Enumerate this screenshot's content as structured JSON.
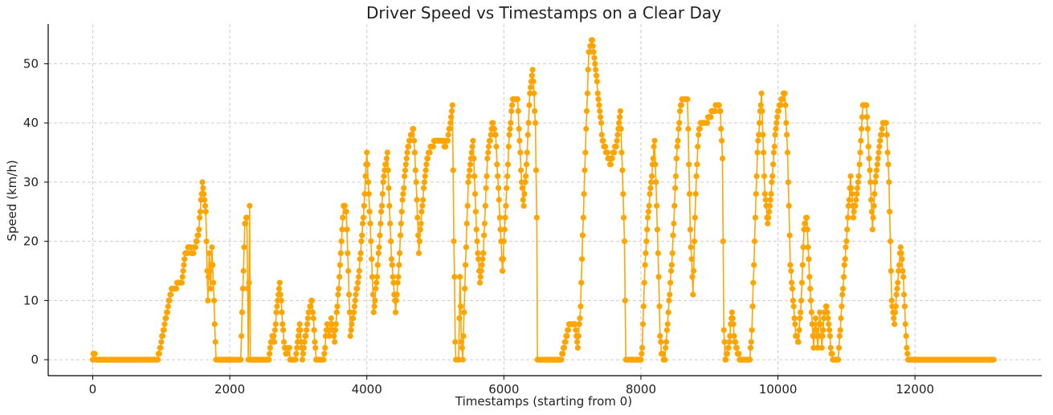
{
  "chart_data": {
    "type": "line",
    "title": "Driver Speed vs Timestamps on a Clear Day",
    "xlabel": "Timestamps (starting from 0)",
    "ylabel": "Speed (km/h)",
    "xlim": [
      -650,
      13850
    ],
    "ylim": [
      -2.7,
      56.7
    ],
    "x_ticks": [
      0,
      2000,
      4000,
      6000,
      8000,
      10000,
      12000
    ],
    "x_tick_labels": [
      "0",
      "2000",
      "4000",
      "6000",
      "8000",
      "10000",
      "12000"
    ],
    "y_ticks": [
      0,
      10,
      20,
      30,
      40,
      50
    ],
    "y_tick_labels": [
      "0",
      "10",
      "20",
      "30",
      "40",
      "50"
    ],
    "grid": true,
    "color": "#FFA500",
    "marker": "circle",
    "x_step": 10,
    "series": [
      {
        "keypoints": [
          [
            0,
            0
          ],
          [
            20,
            1
          ],
          [
            40,
            0
          ],
          [
            950,
            0
          ],
          [
            1150,
            12
          ],
          [
            1300,
            13
          ],
          [
            1350,
            18
          ],
          [
            1420,
            19
          ],
          [
            1450,
            18
          ],
          [
            1500,
            19
          ],
          [
            1550,
            22
          ],
          [
            1600,
            30
          ],
          [
            1650,
            25
          ],
          [
            1680,
            10
          ],
          [
            1700,
            18
          ],
          [
            1720,
            12
          ],
          [
            1740,
            19
          ],
          [
            1760,
            13
          ],
          [
            1780,
            6
          ],
          [
            1800,
            0
          ],
          [
            2160,
            0
          ],
          [
            2220,
            23
          ],
          [
            2250,
            24
          ],
          [
            2270,
            0
          ],
          [
            2290,
            26
          ],
          [
            2300,
            0
          ],
          [
            2570,
            0
          ],
          [
            2600,
            3
          ],
          [
            2630,
            4
          ],
          [
            2650,
            3
          ],
          [
            2680,
            8
          ],
          [
            2730,
            13
          ],
          [
            2760,
            8
          ],
          [
            2790,
            3
          ],
          [
            2820,
            1
          ],
          [
            2870,
            2
          ],
          [
            2880,
            0
          ],
          [
            2960,
            0
          ],
          [
            3020,
            6
          ],
          [
            3060,
            0
          ],
          [
            3140,
            7
          ],
          [
            3200,
            10
          ],
          [
            3260,
            0
          ],
          [
            3370,
            0
          ],
          [
            3420,
            6
          ],
          [
            3450,
            4
          ],
          [
            3480,
            7
          ],
          [
            3530,
            3
          ],
          [
            3600,
            14
          ],
          [
            3660,
            26
          ],
          [
            3700,
            25
          ],
          [
            3760,
            4
          ],
          [
            3820,
            9
          ],
          [
            3880,
            14
          ],
          [
            3950,
            24
          ],
          [
            4000,
            35
          ],
          [
            4060,
            20
          ],
          [
            4100,
            8
          ],
          [
            4150,
            14
          ],
          [
            4240,
            30
          ],
          [
            4300,
            35
          ],
          [
            4360,
            17
          ],
          [
            4420,
            8
          ],
          [
            4460,
            14
          ],
          [
            4520,
            27
          ],
          [
            4580,
            34
          ],
          [
            4620,
            37
          ],
          [
            4680,
            39
          ],
          [
            4720,
            30
          ],
          [
            4760,
            18
          ],
          [
            4800,
            25
          ],
          [
            4860,
            32
          ],
          [
            4900,
            35
          ],
          [
            4960,
            36
          ],
          [
            5000,
            37
          ],
          [
            5100,
            37
          ],
          [
            5140,
            36
          ],
          [
            5180,
            37
          ],
          [
            5220,
            40
          ],
          [
            5250,
            43
          ],
          [
            5270,
            20
          ],
          [
            5280,
            14
          ],
          [
            5290,
            3
          ],
          [
            5300,
            0
          ],
          [
            5340,
            0
          ],
          [
            5360,
            14
          ],
          [
            5380,
            3
          ],
          [
            5400,
            0
          ],
          [
            5430,
            12
          ],
          [
            5480,
            30
          ],
          [
            5550,
            37
          ],
          [
            5600,
            22
          ],
          [
            5650,
            13
          ],
          [
            5700,
            18
          ],
          [
            5760,
            34
          ],
          [
            5830,
            40
          ],
          [
            5880,
            38
          ],
          [
            5950,
            22
          ],
          [
            5980,
            15
          ],
          [
            6020,
            24
          ],
          [
            6080,
            38
          ],
          [
            6130,
            44
          ],
          [
            6200,
            44
          ],
          [
            6260,
            30
          ],
          [
            6290,
            26
          ],
          [
            6330,
            33
          ],
          [
            6380,
            45
          ],
          [
            6420,
            49
          ],
          [
            6460,
            40
          ],
          [
            6480,
            24
          ],
          [
            6490,
            0
          ],
          [
            6830,
            0
          ],
          [
            6880,
            2
          ],
          [
            6920,
            4
          ],
          [
            6960,
            6
          ],
          [
            7040,
            6
          ],
          [
            7080,
            2
          ],
          [
            7120,
            9
          ],
          [
            7180,
            32
          ],
          [
            7240,
            52
          ],
          [
            7290,
            54
          ],
          [
            7330,
            50
          ],
          [
            7400,
            42
          ],
          [
            7440,
            37
          ],
          [
            7500,
            35
          ],
          [
            7560,
            33
          ],
          [
            7600,
            35
          ],
          [
            7640,
            36
          ],
          [
            7700,
            42
          ],
          [
            7740,
            28
          ],
          [
            7760,
            20
          ],
          [
            7780,
            0
          ],
          [
            8000,
            0
          ],
          [
            8020,
            2
          ],
          [
            8060,
            16
          ],
          [
            8100,
            24
          ],
          [
            8150,
            30
          ],
          [
            8200,
            37
          ],
          [
            8230,
            26
          ],
          [
            8260,
            14
          ],
          [
            8280,
            4
          ],
          [
            8300,
            1
          ],
          [
            8350,
            0
          ],
          [
            8400,
            8
          ],
          [
            8460,
            18
          ],
          [
            8520,
            34
          ],
          [
            8580,
            43
          ],
          [
            8620,
            44
          ],
          [
            8680,
            44
          ],
          [
            8720,
            22
          ],
          [
            8760,
            11
          ],
          [
            8800,
            28
          ],
          [
            8840,
            38
          ],
          [
            8880,
            40
          ],
          [
            8950,
            40
          ],
          [
            9000,
            41
          ],
          [
            9060,
            42
          ],
          [
            9120,
            43
          ],
          [
            9160,
            42
          ],
          [
            9190,
            34
          ],
          [
            9210,
            5
          ],
          [
            9230,
            0
          ],
          [
            9260,
            1
          ],
          [
            9290,
            3
          ],
          [
            9330,
            8
          ],
          [
            9370,
            3
          ],
          [
            9410,
            1
          ],
          [
            9450,
            0
          ],
          [
            9590,
            0
          ],
          [
            9620,
            5
          ],
          [
            9660,
            20
          ],
          [
            9700,
            35
          ],
          [
            9760,
            45
          ],
          [
            9810,
            28
          ],
          [
            9850,
            23
          ],
          [
            9900,
            28
          ],
          [
            9960,
            38
          ],
          [
            10000,
            42
          ],
          [
            10060,
            44
          ],
          [
            10100,
            45
          ],
          [
            10140,
            35
          ],
          [
            10180,
            16
          ],
          [
            10220,
            10
          ],
          [
            10260,
            4
          ],
          [
            10300,
            3
          ],
          [
            10340,
            10
          ],
          [
            10380,
            22
          ],
          [
            10420,
            24
          ],
          [
            10460,
            14
          ],
          [
            10500,
            6
          ],
          [
            10520,
            2
          ],
          [
            10550,
            7
          ],
          [
            10580,
            2
          ],
          [
            10610,
            8
          ],
          [
            10640,
            2
          ],
          [
            10670,
            7
          ],
          [
            10710,
            9
          ],
          [
            10750,
            5
          ],
          [
            10780,
            1
          ],
          [
            10800,
            0
          ],
          [
            10880,
            0
          ],
          [
            10920,
            7
          ],
          [
            10960,
            14
          ],
          [
            11000,
            20
          ],
          [
            11060,
            31
          ],
          [
            11100,
            24
          ],
          [
            11140,
            27
          ],
          [
            11180,
            31
          ],
          [
            11240,
            43
          ],
          [
            11290,
            43
          ],
          [
            11340,
            32
          ],
          [
            11380,
            22
          ],
          [
            11420,
            30
          ],
          [
            11480,
            36
          ],
          [
            11530,
            40
          ],
          [
            11580,
            40
          ],
          [
            11620,
            30
          ],
          [
            11660,
            10
          ],
          [
            11700,
            6
          ],
          [
            11740,
            12
          ],
          [
            11790,
            19
          ],
          [
            11830,
            14
          ],
          [
            11860,
            6
          ],
          [
            11880,
            2
          ],
          [
            11900,
            0
          ],
          [
            13150,
            0
          ]
        ]
      }
    ]
  }
}
